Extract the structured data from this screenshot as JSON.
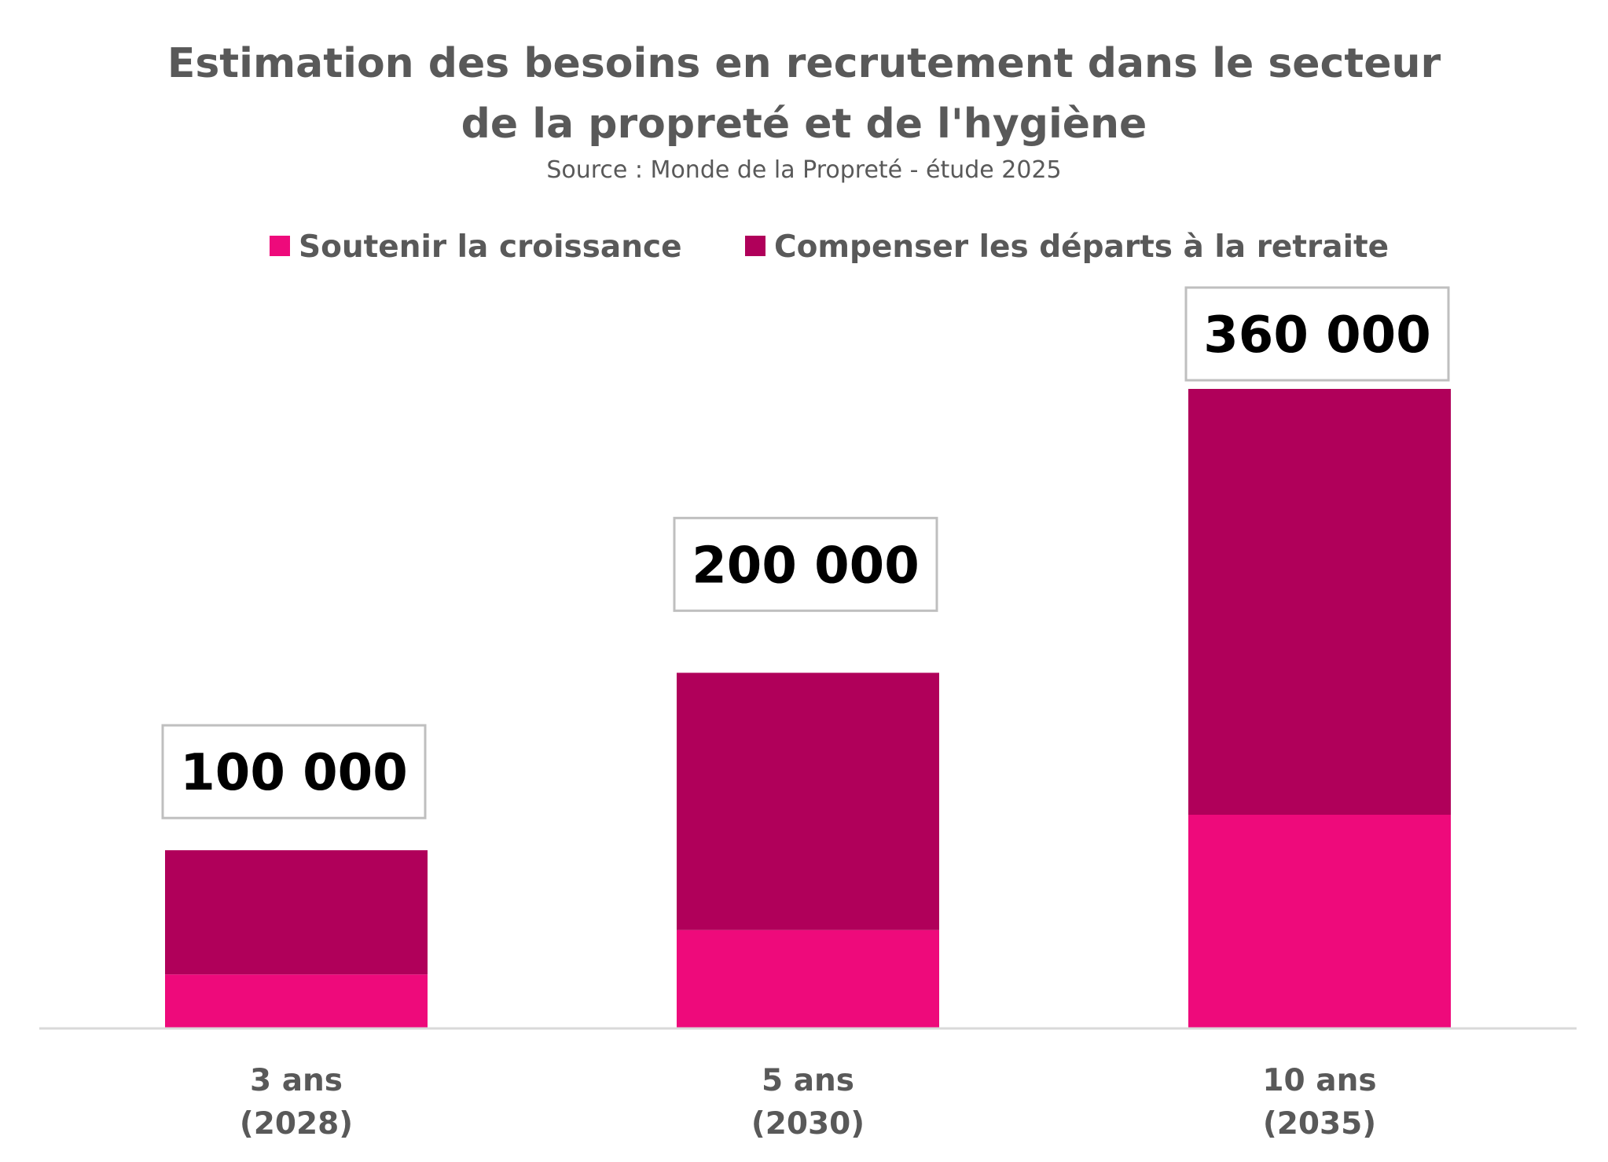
{
  "chart_data": {
    "type": "bar",
    "stacked": true,
    "title_lines": [
      "Estimation des besoins en recrutement dans le secteur",
      "de la propreté et de l'hygiène"
    ],
    "subtitle": "Source : Monde de la Propreté - étude 2025",
    "categories": [
      {
        "line1": "3 ans",
        "line2": "(2028)"
      },
      {
        "line1": "5 ans",
        "line2": "(2030)"
      },
      {
        "line1": "10 ans",
        "line2": "(2035)"
      }
    ],
    "series": [
      {
        "name": "Soutenir la croissance",
        "color": "#EE0A7B",
        "values": [
          30000,
          55000,
          120000
        ]
      },
      {
        "name": "Compenser les départs à la retraite",
        "color": "#B0005A",
        "values": [
          70000,
          145000,
          240000
        ]
      }
    ],
    "total_labels": [
      "100 000",
      "200 000",
      "360 000"
    ],
    "ylim": [
      0,
      360000
    ],
    "legend_position": "top-center",
    "grid": false,
    "xlabel": "",
    "ylabel": ""
  }
}
